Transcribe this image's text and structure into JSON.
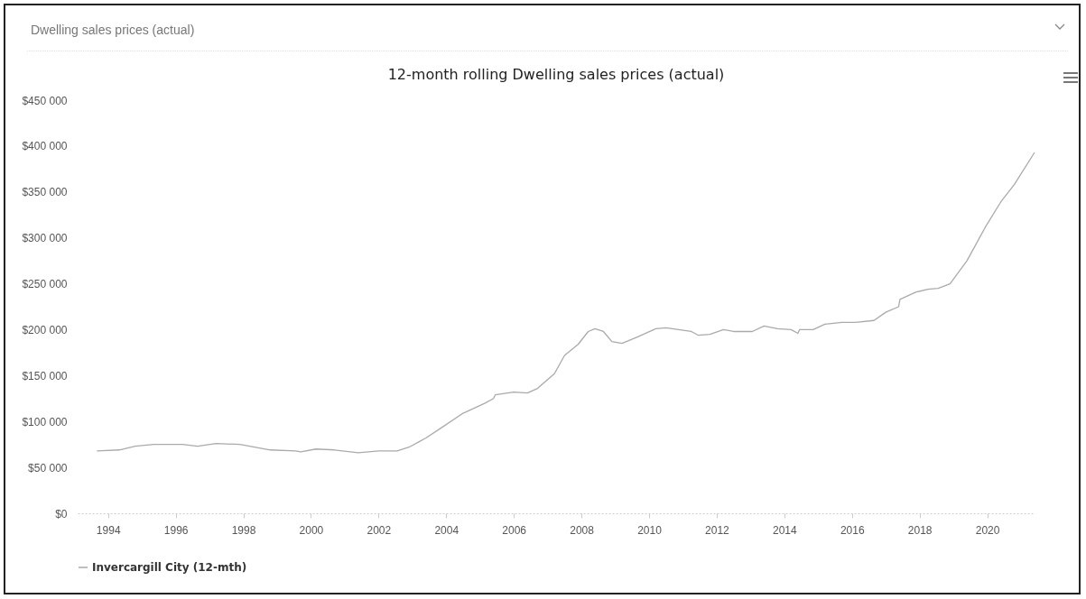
{
  "chart_data": {
    "type": "line",
    "title": "12-month rolling Dwelling sales prices (actual)",
    "annotations": [
      "Dwelling sales prices (actual)"
    ],
    "xlim": [
      1993.1,
      2021.4
    ],
    "xticks": [
      1994,
      1996,
      1998,
      2000,
      2002,
      2004,
      2006,
      2008,
      2010,
      2012,
      2014,
      2016,
      2018,
      2020
    ],
    "ylim": [
      0,
      450000
    ],
    "yticks": [
      {
        "value": 0,
        "label": "$0"
      },
      {
        "value": 50000,
        "label": "$50 000"
      },
      {
        "value": 100000,
        "label": "$100 000"
      },
      {
        "value": 150000,
        "label": "$150 000"
      },
      {
        "value": 200000,
        "label": "$200 000"
      },
      {
        "value": 250000,
        "label": "$250 000"
      },
      {
        "value": 300000,
        "label": "$300 000"
      },
      {
        "value": 350000,
        "label": "$350 000"
      },
      {
        "value": 400000,
        "label": "$400 000"
      },
      {
        "value": 450000,
        "label": "$450 000"
      }
    ],
    "legend": "bottom",
    "marker": "none",
    "line_style": "solid",
    "series": [
      {
        "name": "Invercargill City (12-mth)",
        "color": "#aaaaaa",
        "x": [
          1993.67,
          1994.33,
          1994.8,
          1995.35,
          1996.2,
          1996.65,
          1997.2,
          1997.9,
          1998.8,
          1999.55,
          1999.7,
          2000.15,
          2000.7,
          2001.4,
          2002,
          2002.55,
          2002.9,
          2003.2,
          2003.4,
          2003.85,
          2004.5,
          2005.15,
          2005.4,
          2005.45,
          2006,
          2006.4,
          2006.7,
          2007.2,
          2007.5,
          2007.9,
          2008.2,
          2008.4,
          2008.65,
          2008.9,
          2009.2,
          2009.65,
          2010.2,
          2010.5,
          2011.25,
          2011.45,
          2011.8,
          2012.2,
          2012.5,
          2013.05,
          2013.4,
          2013.8,
          2014.2,
          2014.4,
          2014.45,
          2014.85,
          2015.2,
          2015.7,
          2016.1,
          2016.65,
          2017,
          2017.38,
          2017.42,
          2017.9,
          2018.25,
          2018.55,
          2018.9,
          2019.4,
          2019.95,
          2020.4,
          2020.8,
          2021.4
        ],
        "values": [
          68000,
          69000,
          73000,
          75000,
          75000,
          73000,
          76000,
          75000,
          69000,
          68000,
          67000,
          70000,
          69000,
          66000,
          68000,
          68000,
          72000,
          78000,
          82000,
          93000,
          109000,
          120000,
          125000,
          129000,
          132000,
          131000,
          136000,
          152000,
          172000,
          184000,
          198000,
          201000,
          198000,
          187000,
          185000,
          192000,
          201000,
          202000,
          198000,
          194000,
          195000,
          200000,
          198000,
          198000,
          204000,
          201000,
          200000,
          196000,
          200000,
          200000,
          206000,
          208000,
          208000,
          210000,
          219000,
          225000,
          233000,
          241000,
          244000,
          245000,
          250000,
          275000,
          312000,
          339000,
          358000,
          393000
        ]
      }
    ]
  }
}
